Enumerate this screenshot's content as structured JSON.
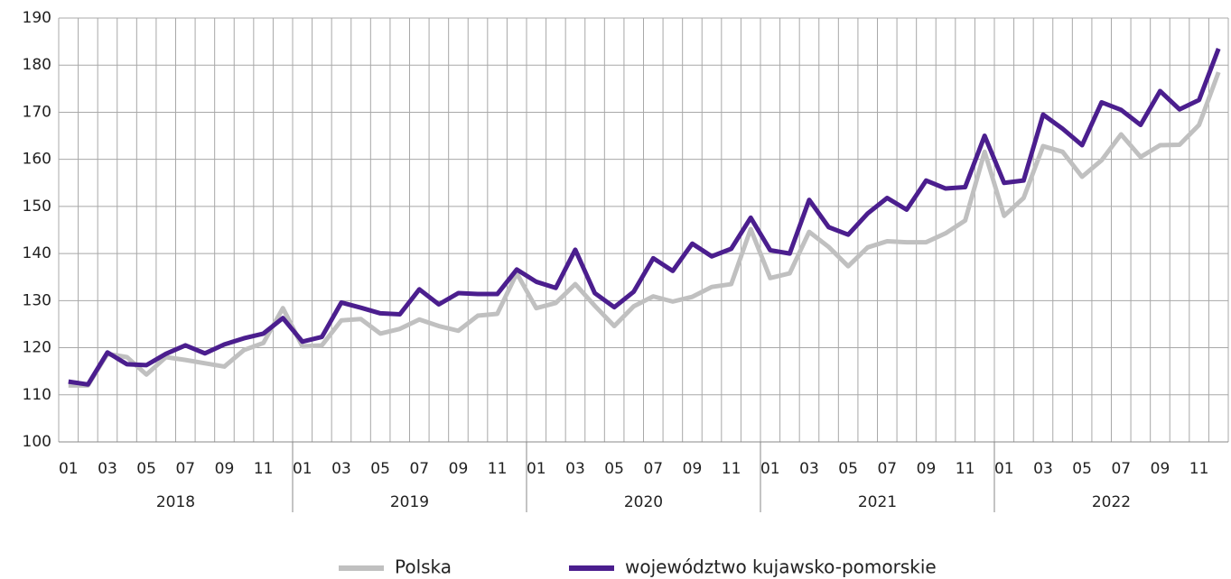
{
  "chart_data": {
    "type": "line",
    "categories": [
      "01",
      null,
      "03",
      null,
      "05",
      null,
      "07",
      null,
      "09",
      null,
      "11",
      null,
      "01",
      null,
      "03",
      null,
      "05",
      null,
      "07",
      null,
      "09",
      null,
      "11",
      null,
      "01",
      null,
      "03",
      null,
      "05",
      null,
      "07",
      null,
      "09",
      null,
      "11",
      null,
      "01",
      null,
      "03",
      null,
      "05",
      null,
      "07",
      null,
      "09",
      null,
      "11",
      null,
      "01",
      null,
      "03",
      null,
      "05",
      null,
      "07",
      null,
      "09",
      null,
      "11",
      null
    ],
    "groups": [
      "2018",
      "2019",
      "2020",
      "2021",
      "2022"
    ],
    "series": [
      {
        "name": "Polska",
        "color": "#c0c0c0",
        "values": [
          112,
          112,
          118.7,
          118,
          114.3,
          118,
          117.4,
          116.7,
          116,
          119.5,
          121,
          128.4,
          120.3,
          120.5,
          125.8,
          126.1,
          123,
          124,
          126,
          124.6,
          123.6,
          126.8,
          127.2,
          135.8,
          128.4,
          129.5,
          133.5,
          128.9,
          124.6,
          128.8,
          130.9,
          129.8,
          130.8,
          132.9,
          133.5,
          145.2,
          134.8,
          135.8,
          144.6,
          141.4,
          137.3,
          141.3,
          142.6,
          142.4,
          142.4,
          144.3,
          147,
          161.6,
          148,
          151.8,
          162.8,
          161.6,
          156.3,
          159.8,
          165.3,
          160.5,
          163,
          163.1,
          167.3,
          178.5
        ]
      },
      {
        "name": "województwo kujawsko-pomorskie",
        "color": "#4b1e8e",
        "values": [
          112.8,
          112.2,
          119,
          116.5,
          116.3,
          118.7,
          120.5,
          118.8,
          120.7,
          122,
          123,
          126.3,
          121.3,
          122.3,
          129.6,
          128.5,
          127.3,
          127.1,
          132.4,
          129.2,
          131.6,
          131.4,
          131.4,
          136.6,
          134,
          132.7,
          140.8,
          131.6,
          128.6,
          131.9,
          139,
          136.3,
          142.1,
          139.4,
          141,
          147.6,
          140.7,
          140,
          151.4,
          145.6,
          144,
          148.5,
          151.8,
          149.3,
          155.5,
          153.8,
          154.1,
          165,
          155,
          155.5,
          169.5,
          166.5,
          163,
          172.1,
          170.5,
          167.3,
          174.5,
          170.6,
          172.6,
          183.5
        ]
      }
    ],
    "ylim": [
      100,
      190
    ],
    "yticks": [
      100,
      110,
      120,
      130,
      140,
      150,
      160,
      170,
      180,
      190
    ],
    "grid": true,
    "legend": "bottom"
  }
}
